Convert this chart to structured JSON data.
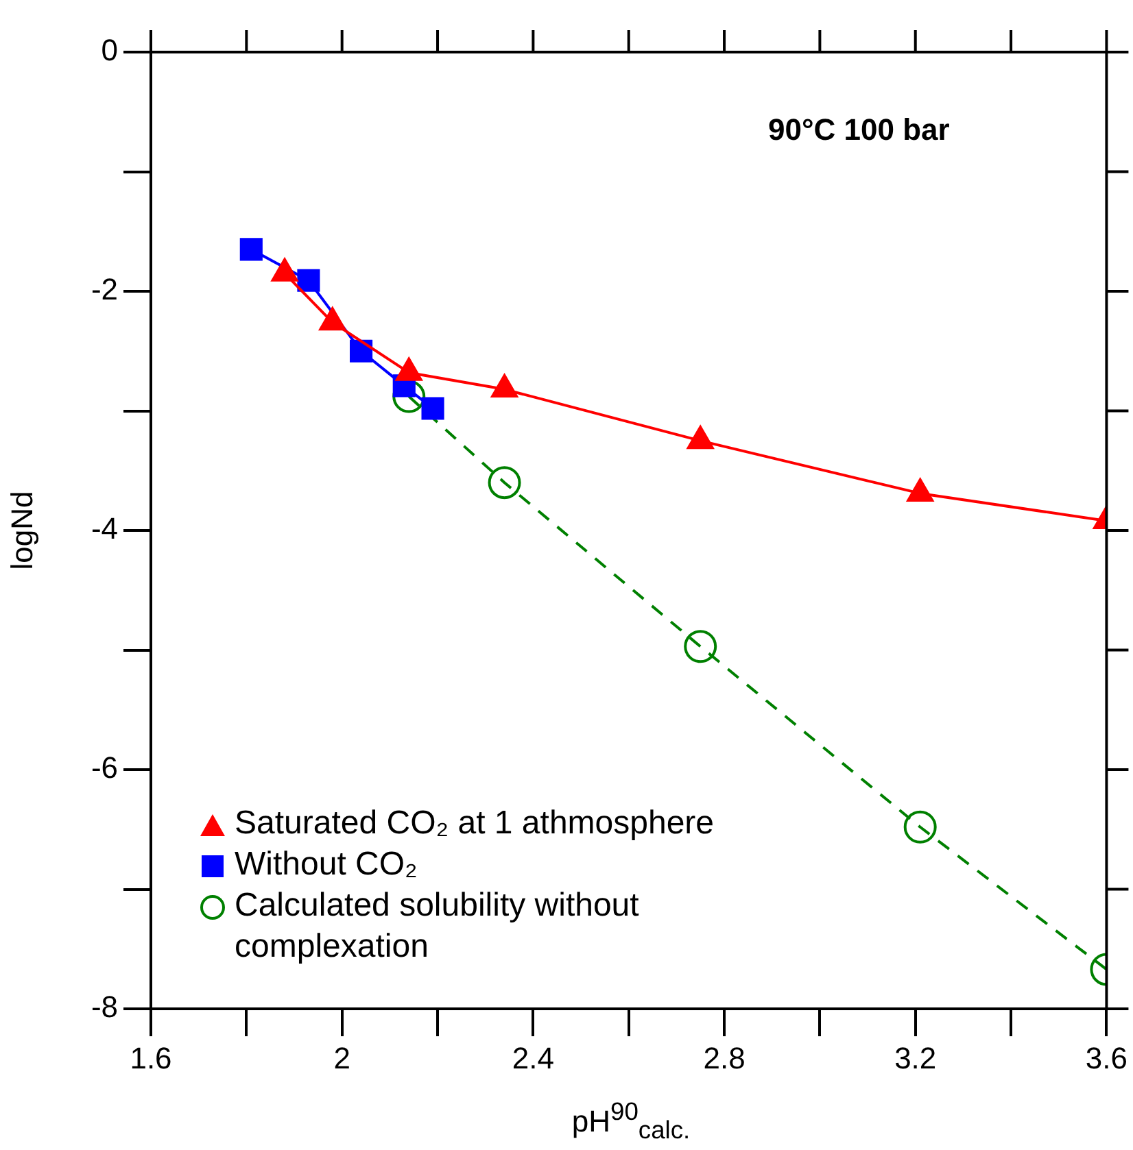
{
  "chart_data": {
    "type": "scatter",
    "xlabel": "pH$^{90}$$_{calc.}$",
    "ylabel": "logNd",
    "annotations": [
      "90°C 100 bar"
    ],
    "xlim": [
      1.6,
      3.6
    ],
    "ylim": [
      -8,
      0
    ],
    "xticks": [
      1.6,
      {
        "value": 1.8,
        "label": null
      },
      2,
      {
        "value": 2.2,
        "label": null
      },
      2.4,
      {
        "value": 2.6,
        "label": null
      },
      2.8,
      {
        "value": 3,
        "label": null
      },
      3.2,
      {
        "value": 3.4,
        "label": null
      },
      3.6
    ],
    "yticks": [
      -8,
      {
        "value": -7,
        "label": null
      },
      -6,
      {
        "value": -5,
        "label": null
      },
      -4,
      {
        "value": -3,
        "label": null
      },
      -2,
      {
        "value": -1,
        "label": null
      },
      0
    ],
    "grid": false,
    "legend": "bottom left",
    "series": [
      {
        "name": "Saturated CO₂ at 1 athmosphere",
        "type": "line",
        "color": "#ff0000",
        "marker": "triangle",
        "line_style": "solid",
        "x": [
          1.88,
          1.98,
          2.14,
          2.34,
          2.75,
          3.21,
          3.6
        ],
        "values": [
          -1.85,
          -2.26,
          -2.68,
          -2.82,
          -3.25,
          -3.69,
          -3.92
        ]
      },
      {
        "name": "Without  CO₂",
        "type": "line",
        "color": "#0000ff",
        "marker": "square",
        "line_style": "solid",
        "x": [
          1.81,
          1.93,
          2.04,
          2.13,
          2.19
        ],
        "values": [
          -1.65,
          -1.91,
          -2.5,
          -2.79,
          -2.98
        ]
      },
      {
        "name": "Calculated solubility without complexation",
        "type": "line",
        "color": "#008000",
        "marker": "circle",
        "line_style": "dashed",
        "x": [
          2.14,
          2.34,
          2.75,
          3.21,
          3.6
        ],
        "values": [
          -2.88,
          -3.6,
          -4.97,
          -6.48,
          -7.67
        ]
      }
    ]
  }
}
